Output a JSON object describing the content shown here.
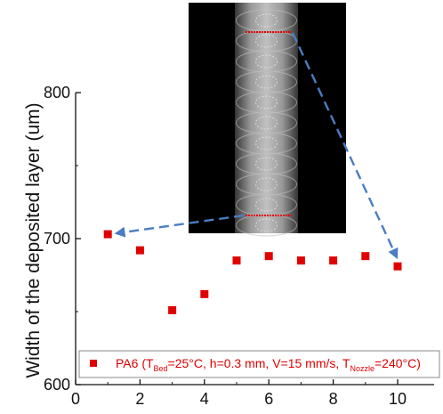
{
  "chart_data": {
    "type": "scatter",
    "title": "",
    "xlabel": "",
    "ylabel": "Width of the deposited layer (um)",
    "xlim": [
      0,
      11
    ],
    "ylim": [
      600,
      800
    ],
    "x_ticks": [
      0,
      2,
      4,
      6,
      8,
      10
    ],
    "y_ticks": [
      600,
      700,
      800
    ],
    "series": [
      {
        "name": "PA6",
        "legend": {
          "prefix": "PA6 (T",
          "sub1": "Bed",
          "mid": "=25°C, h=0.3 mm, V=15 mm/s, T",
          "sub2": "Nozzle",
          "suffix": "=240°C)"
        },
        "color": "#e00000",
        "marker": "square",
        "x": [
          1,
          2,
          3,
          4,
          5,
          6,
          7,
          8,
          9,
          10
        ],
        "y": [
          703,
          692,
          651,
          662,
          685,
          688,
          685,
          685,
          688,
          681
        ]
      }
    ],
    "legend_position": "bottom",
    "grid": false,
    "inset": {
      "description_icon": "deposited-layer-micrograph",
      "arrow_color": "#4a7dc4",
      "arrows_point_to_x": [
        1,
        10
      ]
    }
  }
}
